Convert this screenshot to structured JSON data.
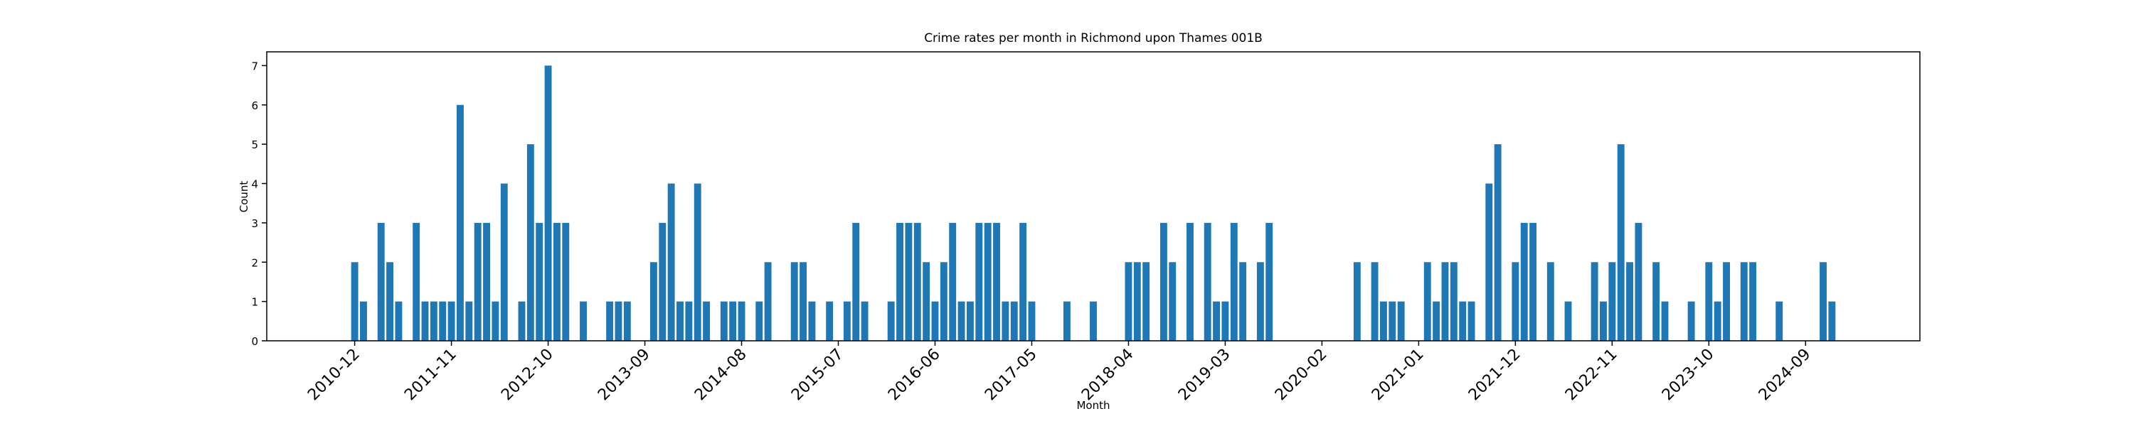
{
  "chart_data": {
    "type": "bar",
    "title": "Crime rates per month in Richmond upon Thames 001B",
    "x_label": "Month",
    "y_label": "Count",
    "color": "#1f77b4",
    "x": [
      "2010-12",
      "2011-01",
      "2011-03",
      "2011-04",
      "2011-05",
      "2011-07",
      "2011-08",
      "2011-09",
      "2011-10",
      "2011-11",
      "2011-12",
      "2012-01",
      "2012-02",
      "2012-03",
      "2012-04",
      "2012-05",
      "2012-07",
      "2012-08",
      "2012-09",
      "2012-10",
      "2012-11",
      "2012-12",
      "2013-02",
      "2013-05",
      "2013-06",
      "2013-07",
      "2013-10",
      "2013-11",
      "2013-12",
      "2014-01",
      "2014-02",
      "2014-03",
      "2014-04",
      "2014-06",
      "2014-07",
      "2014-08",
      "2014-10",
      "2014-11",
      "2015-02",
      "2015-03",
      "2015-04",
      "2015-06",
      "2015-08",
      "2015-09",
      "2015-10",
      "2016-01",
      "2016-02",
      "2016-03",
      "2016-04",
      "2016-05",
      "2016-06",
      "2016-07",
      "2016-08",
      "2016-09",
      "2016-10",
      "2016-11",
      "2016-12",
      "2017-01",
      "2017-02",
      "2017-03",
      "2017-04",
      "2017-05",
      "2017-09",
      "2017-12",
      "2018-04",
      "2018-05",
      "2018-06",
      "2018-08",
      "2018-09",
      "2018-11",
      "2019-01",
      "2019-02",
      "2019-03",
      "2019-04",
      "2019-05",
      "2019-07",
      "2019-08",
      "2020-06",
      "2020-08",
      "2020-09",
      "2020-10",
      "2020-11",
      "2021-02",
      "2021-03",
      "2021-04",
      "2021-05",
      "2021-06",
      "2021-07",
      "2021-09",
      "2021-10",
      "2021-12",
      "2022-01",
      "2022-02",
      "2022-04",
      "2022-06",
      "2022-09",
      "2022-10",
      "2022-11",
      "2022-12",
      "2023-01",
      "2023-02",
      "2023-04",
      "2023-05",
      "2023-08",
      "2023-10",
      "2023-11",
      "2023-12",
      "2024-02",
      "2024-03",
      "2024-06",
      "2024-11",
      "2024-12"
    ],
    "values": [
      2,
      1,
      3,
      2,
      1,
      3,
      1,
      1,
      1,
      1,
      6,
      1,
      3,
      3,
      1,
      4,
      1,
      5,
      3,
      7,
      3,
      3,
      1,
      1,
      1,
      1,
      2,
      3,
      4,
      1,
      1,
      4,
      1,
      1,
      1,
      1,
      1,
      2,
      2,
      2,
      1,
      1,
      1,
      3,
      1,
      1,
      3,
      3,
      3,
      2,
      1,
      2,
      3,
      1,
      1,
      3,
      3,
      3,
      1,
      1,
      3,
      1,
      1,
      1,
      2,
      2,
      2,
      3,
      2,
      3,
      3,
      1,
      1,
      3,
      2,
      2,
      3,
      2,
      2,
      1,
      1,
      1,
      2,
      1,
      2,
      2,
      1,
      1,
      4,
      5,
      2,
      3,
      3,
      2,
      1,
      2,
      1,
      2,
      5,
      2,
      3,
      2,
      1,
      1,
      2,
      1,
      2,
      2,
      2,
      1,
      2,
      1
    ],
    "xlim": [
      "2010-02",
      "2025-10"
    ],
    "xticks": [
      "2010-12",
      "2011-11",
      "2012-10",
      "2013-09",
      "2014-08",
      "2015-07",
      "2016-06",
      "2017-05",
      "2018-04",
      "2019-03",
      "2020-02",
      "2021-01",
      "2021-12",
      "2022-11",
      "2023-10",
      "2024-09"
    ],
    "ylim": [
      0,
      7.35
    ],
    "yticks": [
      0,
      1,
      2,
      3,
      4,
      5,
      6,
      7
    ]
  }
}
